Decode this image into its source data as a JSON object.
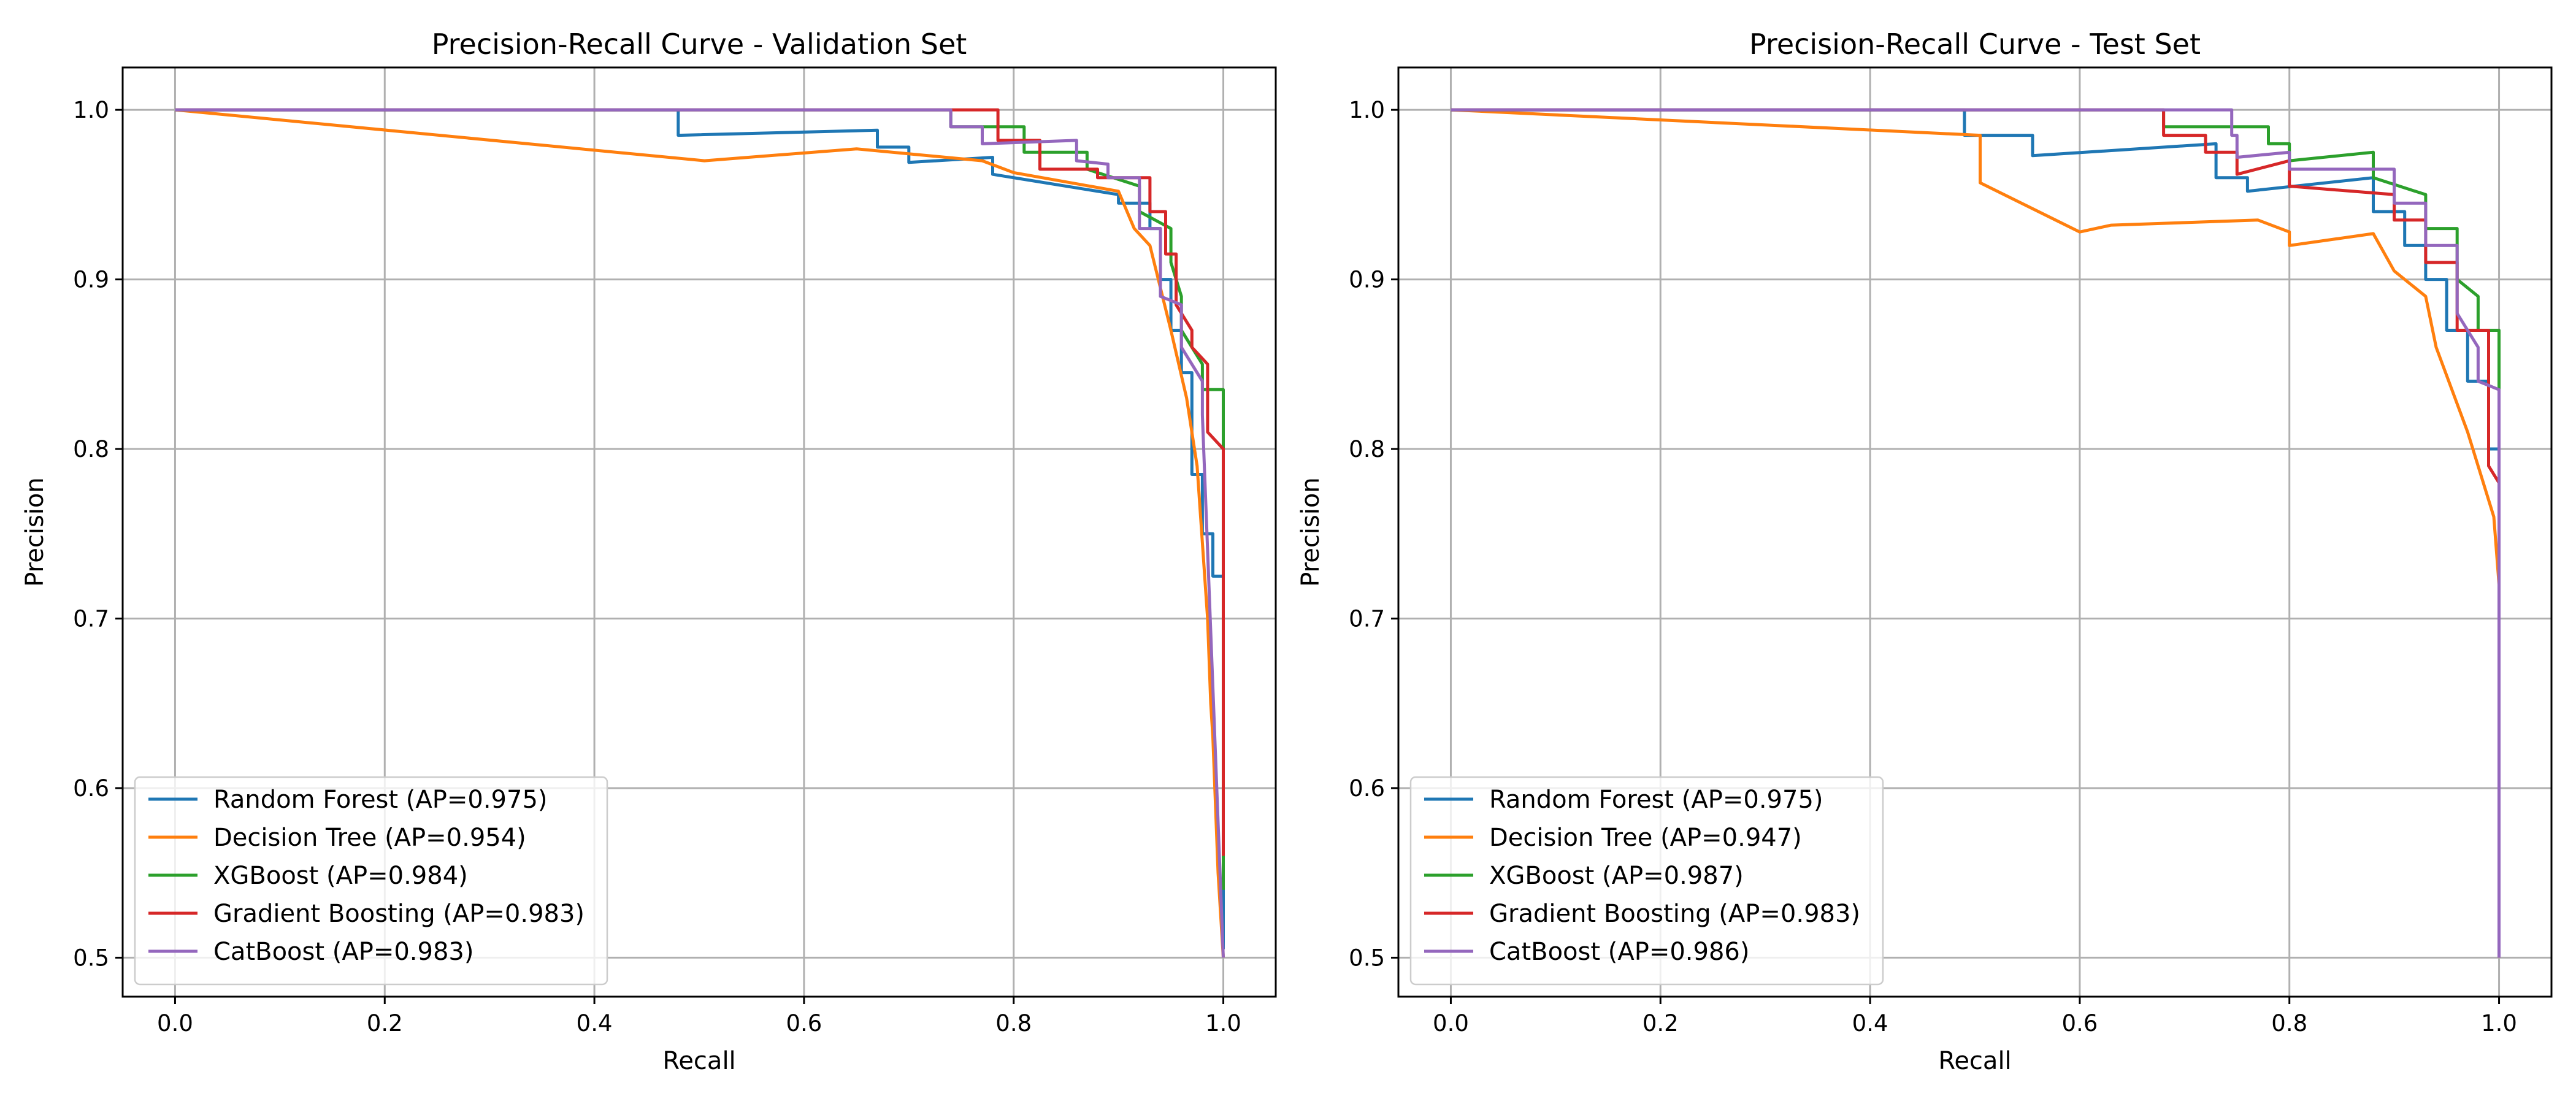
{
  "chart_data": [
    {
      "type": "line",
      "title": "Precision-Recall Curve - Validation Set",
      "xlabel": "Recall",
      "ylabel": "Precision",
      "xlim": [
        -0.05,
        1.05
      ],
      "ylim": [
        0.477,
        1.025
      ],
      "xticks": [
        0.0,
        0.2,
        0.4,
        0.6,
        0.8,
        1.0
      ],
      "xtick_labels": [
        "0.0",
        "0.2",
        "0.4",
        "0.6",
        "0.8",
        "1.0"
      ],
      "yticks": [
        0.5,
        0.6,
        0.7,
        0.8,
        0.9,
        1.0
      ],
      "ytick_labels": [
        "0.5",
        "0.6",
        "0.7",
        "0.8",
        "0.9",
        "1.0"
      ],
      "grid": true,
      "legend_position": "lower-left",
      "series": [
        {
          "name": "Random Forest (AP=0.975)",
          "color": "#1f77b4",
          "x": [
            0.0,
            0.48,
            0.48,
            0.67,
            0.67,
            0.7,
            0.7,
            0.78,
            0.78,
            0.9,
            0.9,
            0.93,
            0.93,
            0.94,
            0.94,
            0.95,
            0.95,
            0.96,
            0.96,
            0.97,
            0.97,
            0.98,
            0.98,
            0.99,
            0.99,
            1.0,
            1.0
          ],
          "y": [
            1.0,
            1.0,
            0.985,
            0.988,
            0.978,
            0.978,
            0.969,
            0.972,
            0.962,
            0.95,
            0.945,
            0.945,
            0.93,
            0.93,
            0.9,
            0.9,
            0.87,
            0.87,
            0.845,
            0.845,
            0.785,
            0.785,
            0.75,
            0.75,
            0.725,
            0.725,
            0.505
          ]
        },
        {
          "name": "Decision Tree (AP=0.954)",
          "color": "#ff7f0e",
          "x": [
            0.0,
            0.505,
            0.65,
            0.77,
            0.8,
            0.9,
            0.915,
            0.93,
            0.95,
            0.965,
            0.975,
            0.985,
            0.988,
            0.99,
            0.995,
            1.0
          ],
          "y": [
            1.0,
            0.97,
            0.977,
            0.97,
            0.963,
            0.952,
            0.93,
            0.92,
            0.87,
            0.83,
            0.79,
            0.7,
            0.65,
            0.63,
            0.55,
            0.5
          ]
        },
        {
          "name": "XGBoost (AP=0.984)",
          "color": "#2ca02c",
          "x": [
            0.0,
            0.74,
            0.74,
            0.81,
            0.81,
            0.87,
            0.87,
            0.92,
            0.92,
            0.95,
            0.95,
            0.96,
            0.96,
            0.98,
            0.98,
            1.0,
            1.0
          ],
          "y": [
            1.0,
            1.0,
            0.99,
            0.99,
            0.975,
            0.975,
            0.965,
            0.955,
            0.94,
            0.93,
            0.91,
            0.89,
            0.87,
            0.85,
            0.835,
            0.835,
            0.54
          ]
        },
        {
          "name": "Gradient Boosting (AP=0.983)",
          "color": "#d62728",
          "x": [
            0.0,
            0.785,
            0.785,
            0.825,
            0.825,
            0.88,
            0.88,
            0.93,
            0.93,
            0.945,
            0.945,
            0.955,
            0.955,
            0.97,
            0.97,
            0.985,
            0.985,
            1.0,
            1.0
          ],
          "y": [
            1.0,
            1.0,
            0.982,
            0.982,
            0.965,
            0.965,
            0.96,
            0.96,
            0.94,
            0.94,
            0.915,
            0.915,
            0.885,
            0.87,
            0.86,
            0.85,
            0.81,
            0.8,
            0.56
          ]
        },
        {
          "name": "CatBoost (AP=0.983)",
          "color": "#9467bd",
          "x": [
            0.0,
            0.74,
            0.74,
            0.77,
            0.77,
            0.86,
            0.86,
            0.89,
            0.89,
            0.92,
            0.92,
            0.94,
            0.94,
            0.96,
            0.96,
            0.98,
            0.98,
            1.0
          ],
          "y": [
            1.0,
            1.0,
            0.99,
            0.99,
            0.98,
            0.982,
            0.97,
            0.968,
            0.96,
            0.96,
            0.93,
            0.93,
            0.89,
            0.885,
            0.86,
            0.84,
            0.82,
            0.5
          ]
        }
      ]
    },
    {
      "type": "line",
      "title": "Precision-Recall Curve - Test Set",
      "xlabel": "Recall",
      "ylabel": "Precision",
      "xlim": [
        -0.05,
        1.05
      ],
      "ylim": [
        0.477,
        1.025
      ],
      "xticks": [
        0.0,
        0.2,
        0.4,
        0.6,
        0.8,
        1.0
      ],
      "xtick_labels": [
        "0.0",
        "0.2",
        "0.4",
        "0.6",
        "0.8",
        "1.0"
      ],
      "yticks": [
        0.5,
        0.6,
        0.7,
        0.8,
        0.9,
        1.0
      ],
      "ytick_labels": [
        "0.5",
        "0.6",
        "0.7",
        "0.8",
        "0.9",
        "1.0"
      ],
      "grid": true,
      "legend_position": "lower-left",
      "series": [
        {
          "name": "Random Forest (AP=0.975)",
          "color": "#1f77b4",
          "x": [
            0.0,
            0.49,
            0.49,
            0.555,
            0.555,
            0.73,
            0.73,
            0.76,
            0.76,
            0.88,
            0.88,
            0.91,
            0.91,
            0.93,
            0.93,
            0.95,
            0.95,
            0.97,
            0.97,
            0.99,
            0.99,
            1.0,
            1.0
          ],
          "y": [
            1.0,
            1.0,
            0.985,
            0.985,
            0.973,
            0.98,
            0.96,
            0.96,
            0.952,
            0.96,
            0.94,
            0.94,
            0.92,
            0.92,
            0.9,
            0.9,
            0.87,
            0.87,
            0.84,
            0.84,
            0.8,
            0.8,
            0.5
          ]
        },
        {
          "name": "Decision Tree (AP=0.947)",
          "color": "#ff7f0e",
          "x": [
            0.0,
            0.505,
            0.505,
            0.6,
            0.63,
            0.77,
            0.8,
            0.8,
            0.88,
            0.9,
            0.93,
            0.94,
            0.97,
            0.985,
            0.995,
            1.0
          ],
          "y": [
            1.0,
            0.985,
            0.957,
            0.928,
            0.932,
            0.935,
            0.928,
            0.92,
            0.927,
            0.905,
            0.89,
            0.86,
            0.81,
            0.78,
            0.76,
            0.72
          ]
        },
        {
          "name": "XGBoost (AP=0.987)",
          "color": "#2ca02c",
          "x": [
            0.0,
            0.68,
            0.68,
            0.78,
            0.78,
            0.8,
            0.8,
            0.88,
            0.88,
            0.93,
            0.93,
            0.96,
            0.96,
            0.98,
            0.98,
            1.0,
            1.0
          ],
          "y": [
            1.0,
            1.0,
            0.99,
            0.99,
            0.98,
            0.98,
            0.97,
            0.975,
            0.96,
            0.95,
            0.93,
            0.93,
            0.9,
            0.89,
            0.87,
            0.87,
            0.5
          ]
        },
        {
          "name": "Gradient Boosting (AP=0.983)",
          "color": "#d62728",
          "x": [
            0.0,
            0.68,
            0.68,
            0.72,
            0.72,
            0.75,
            0.75,
            0.8,
            0.8,
            0.9,
            0.9,
            0.93,
            0.93,
            0.96,
            0.96,
            0.99,
            0.99,
            1.0,
            1.0
          ],
          "y": [
            1.0,
            1.0,
            0.985,
            0.985,
            0.975,
            0.975,
            0.962,
            0.97,
            0.955,
            0.95,
            0.935,
            0.935,
            0.91,
            0.91,
            0.87,
            0.87,
            0.79,
            0.78,
            0.5
          ]
        },
        {
          "name": "CatBoost (AP=0.986)",
          "color": "#9467bd",
          "x": [
            0.0,
            0.745,
            0.745,
            0.75,
            0.75,
            0.8,
            0.8,
            0.9,
            0.9,
            0.93,
            0.93,
            0.96,
            0.96,
            0.98,
            0.98,
            1.0,
            1.0
          ],
          "y": [
            1.0,
            1.0,
            0.985,
            0.985,
            0.972,
            0.975,
            0.965,
            0.965,
            0.945,
            0.945,
            0.92,
            0.92,
            0.88,
            0.86,
            0.84,
            0.835,
            0.5
          ]
        }
      ]
    }
  ]
}
